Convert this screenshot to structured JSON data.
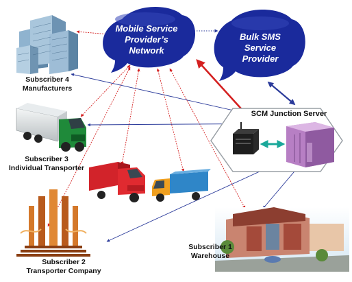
{
  "nodes": {
    "mobile_network": {
      "line1": "Mobile Service",
      "line2": "Provider’s",
      "line3": "Network"
    },
    "bulk_sms": {
      "line1": "Bulk SMS",
      "line2": "Service",
      "line3": "Provider"
    },
    "scm_server": {
      "label": "SCM Junction Server"
    },
    "subscriber4": {
      "line1": "Subscriber 4",
      "line2": "Manufacturers"
    },
    "subscriber3": {
      "line1": "Subscriber 3",
      "line2": "Individual Transporter"
    },
    "subscriber2": {
      "line1": "Subscriber 2",
      "line2": "Transporter Company"
    },
    "subscriber1": {
      "line1": "Subscriber 1",
      "line2": "Warehouse"
    }
  },
  "colors": {
    "cloud": "#1a2a9c",
    "red_link": "#d42020",
    "blue_link": "#2a3a9a",
    "server_purple": "#b77fc4",
    "arrow_teal": "#1aa89a"
  }
}
